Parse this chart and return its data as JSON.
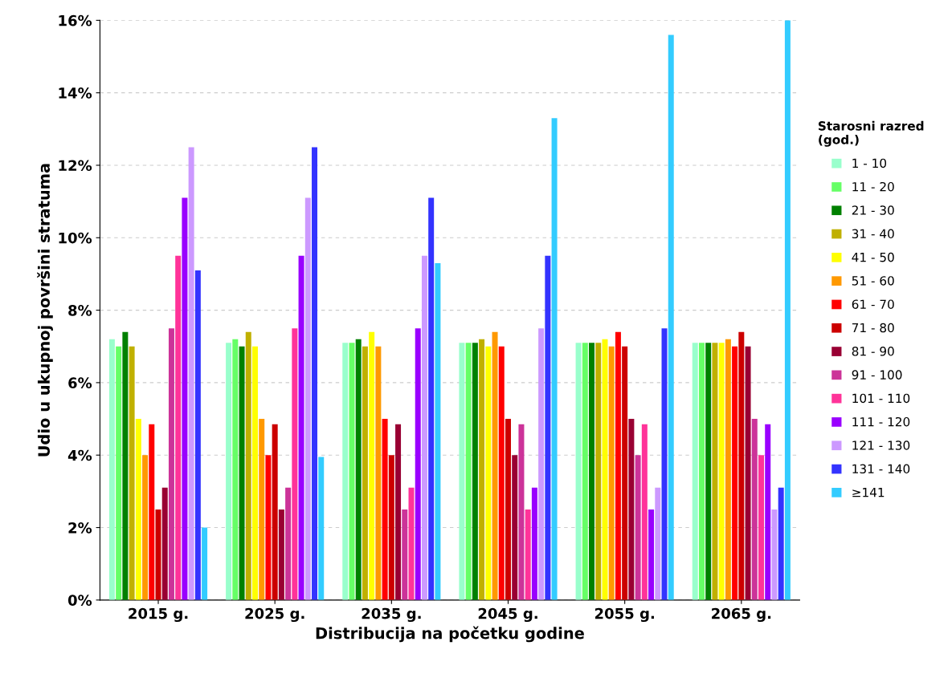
{
  "chart_data": {
    "type": "bar",
    "xlabel": "Distribucija na početku godine",
    "ylabel": "Udio u ukupnoj površini stratuma",
    "legend_title": "Starosni razred\n(god.)",
    "categories": [
      "2015 g.",
      "2025 g.",
      "2035 g.",
      "2045 g.",
      "2055 g.",
      "2065 g."
    ],
    "series": [
      {
        "name": "1 - 10",
        "color": "#99ffcc",
        "values": [
          7.2,
          7.1,
          7.1,
          7.1,
          7.1,
          7.1
        ]
      },
      {
        "name": "11 - 20",
        "color": "#66ff66",
        "values": [
          7.0,
          7.2,
          7.1,
          7.1,
          7.1,
          7.1
        ]
      },
      {
        "name": "21 - 30",
        "color": "#008000",
        "values": [
          7.4,
          7.0,
          7.2,
          7.1,
          7.1,
          7.1
        ]
      },
      {
        "name": "31 - 40",
        "color": "#c0b000",
        "values": [
          7.0,
          7.4,
          7.0,
          7.2,
          7.1,
          7.1
        ]
      },
      {
        "name": "41 - 50",
        "color": "#ffff00",
        "values": [
          5.0,
          7.0,
          7.4,
          7.0,
          7.2,
          7.1
        ]
      },
      {
        "name": "51 - 60",
        "color": "#ff9900",
        "values": [
          4.0,
          5.0,
          7.0,
          7.4,
          7.0,
          7.2
        ]
      },
      {
        "name": "61 - 70",
        "color": "#ff0000",
        "values": [
          4.85,
          4.0,
          5.0,
          7.0,
          7.4,
          7.0
        ]
      },
      {
        "name": "71 - 80",
        "color": "#cc0000",
        "values": [
          2.5,
          4.85,
          4.0,
          5.0,
          7.0,
          7.4
        ]
      },
      {
        "name": "81 - 90",
        "color": "#990033",
        "values": [
          3.1,
          2.5,
          4.85,
          4.0,
          5.0,
          7.0
        ]
      },
      {
        "name": "91 - 100",
        "color": "#cc3399",
        "values": [
          7.5,
          3.1,
          2.5,
          4.85,
          4.0,
          5.0
        ]
      },
      {
        "name": "101 - 110",
        "color": "#ff3399",
        "values": [
          9.5,
          7.5,
          3.1,
          2.5,
          4.85,
          4.0
        ]
      },
      {
        "name": "111 - 120",
        "color": "#9900ff",
        "values": [
          11.1,
          9.5,
          7.5,
          3.1,
          2.5,
          4.85
        ]
      },
      {
        "name": "121 - 130",
        "color": "#cc99ff",
        "values": [
          12.5,
          11.1,
          9.5,
          7.5,
          3.1,
          2.5
        ]
      },
      {
        "name": "131 - 140",
        "color": "#3333ff",
        "values": [
          9.1,
          12.5,
          11.1,
          9.5,
          7.5,
          3.1
        ]
      },
      {
        "name": "≥141",
        "color": "#33ccff",
        "values": [
          2.0,
          3.95,
          9.3,
          13.3,
          15.6,
          16
        ]
      }
    ],
    "ylim": [
      0,
      16
    ],
    "yticks": [
      {
        "value": 0,
        "label": "0%"
      },
      {
        "value": 2,
        "label": "2%"
      },
      {
        "value": 4,
        "label": "4%"
      },
      {
        "value": 6,
        "label": "6%"
      },
      {
        "value": 8,
        "label": "8%"
      },
      {
        "value": 10,
        "label": "10%"
      },
      {
        "value": 12,
        "label": "12%"
      },
      {
        "value": 14,
        "label": "14%"
      },
      {
        "value": 16,
        "label": "16%"
      }
    ],
    "grid": "y",
    "legend": "right"
  }
}
